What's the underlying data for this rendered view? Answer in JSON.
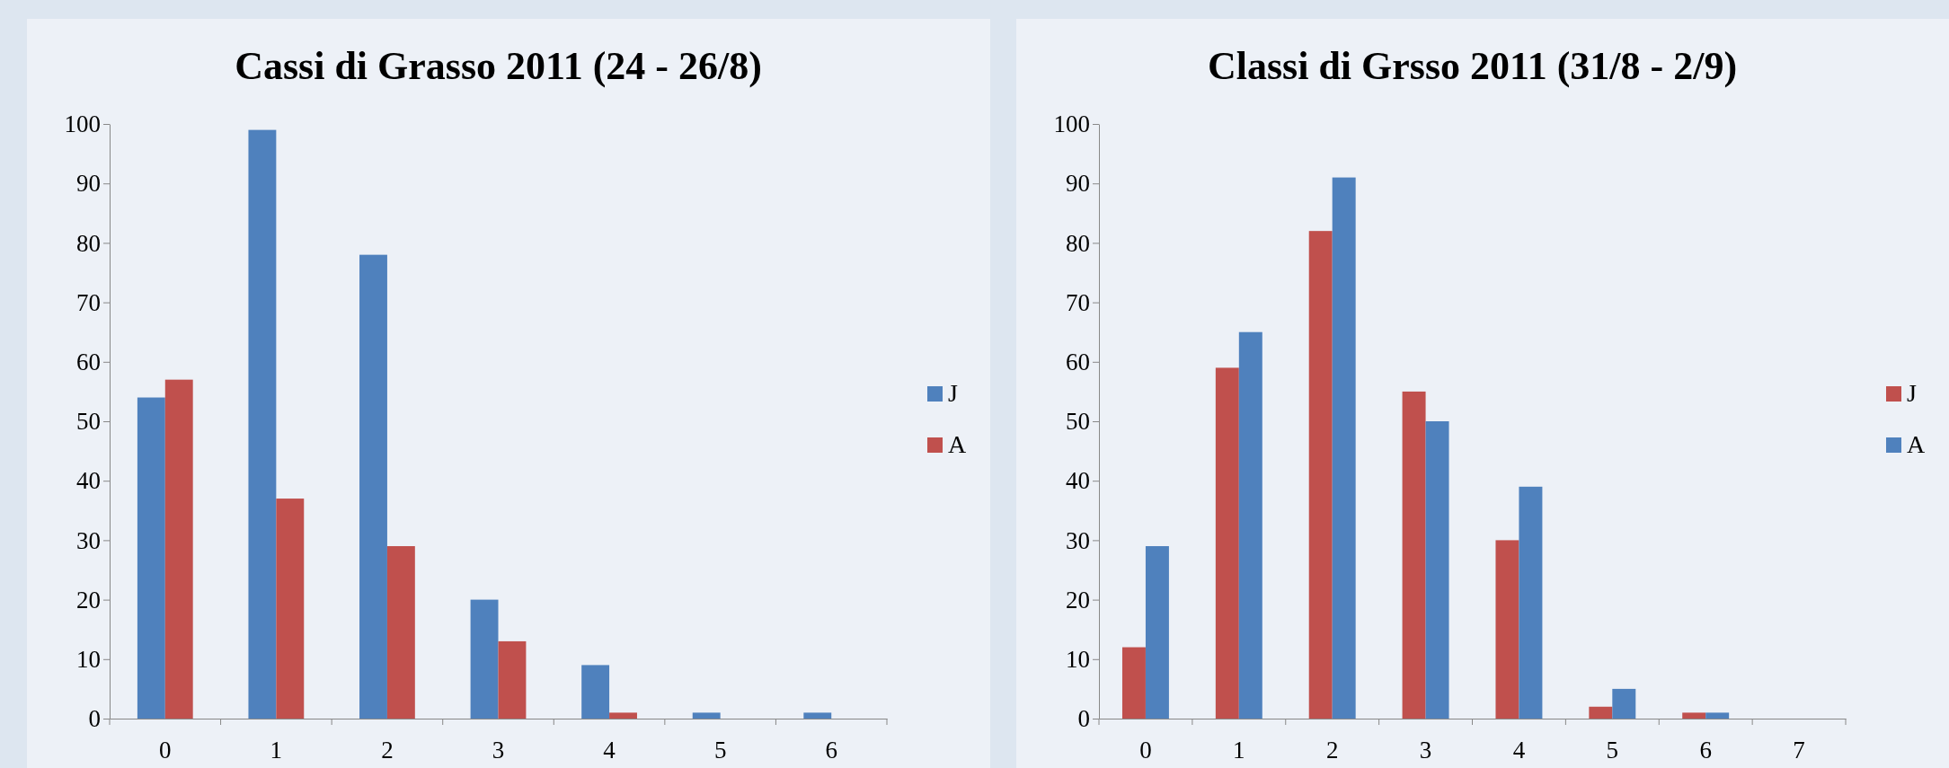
{
  "chart_data": [
    {
      "type": "bar",
      "title": "Cassi di Grasso 2011 (24 - 26/8)",
      "categories": [
        "0",
        "1",
        "2",
        "3",
        "4",
        "5",
        "6"
      ],
      "series": [
        {
          "name": "J",
          "color": "#4f81bd",
          "values": [
            54,
            99,
            78,
            20,
            9,
            1,
            1
          ]
        },
        {
          "name": "A",
          "color": "#c0504d",
          "values": [
            57,
            37,
            29,
            13,
            1,
            0,
            0
          ]
        }
      ],
      "ylim": [
        0,
        100
      ],
      "yticks": [
        0,
        10,
        20,
        30,
        40,
        50,
        60,
        70,
        80,
        90,
        100
      ],
      "legend": "right"
    },
    {
      "type": "bar",
      "title": "Classi di Grsso 2011 (31/8 - 2/9)",
      "categories": [
        "0",
        "1",
        "2",
        "3",
        "4",
        "5",
        "6",
        "7"
      ],
      "series": [
        {
          "name": "J",
          "color": "#c0504d",
          "values": [
            12,
            59,
            82,
            55,
            30,
            2,
            1,
            0
          ]
        },
        {
          "name": "A",
          "color": "#4f81bd",
          "values": [
            29,
            65,
            91,
            50,
            39,
            5,
            1,
            0
          ]
        }
      ],
      "ylim": [
        0,
        100
      ],
      "yticks": [
        0,
        10,
        20,
        30,
        40,
        50,
        60,
        70,
        80,
        90,
        100
      ],
      "legend": "right"
    }
  ]
}
